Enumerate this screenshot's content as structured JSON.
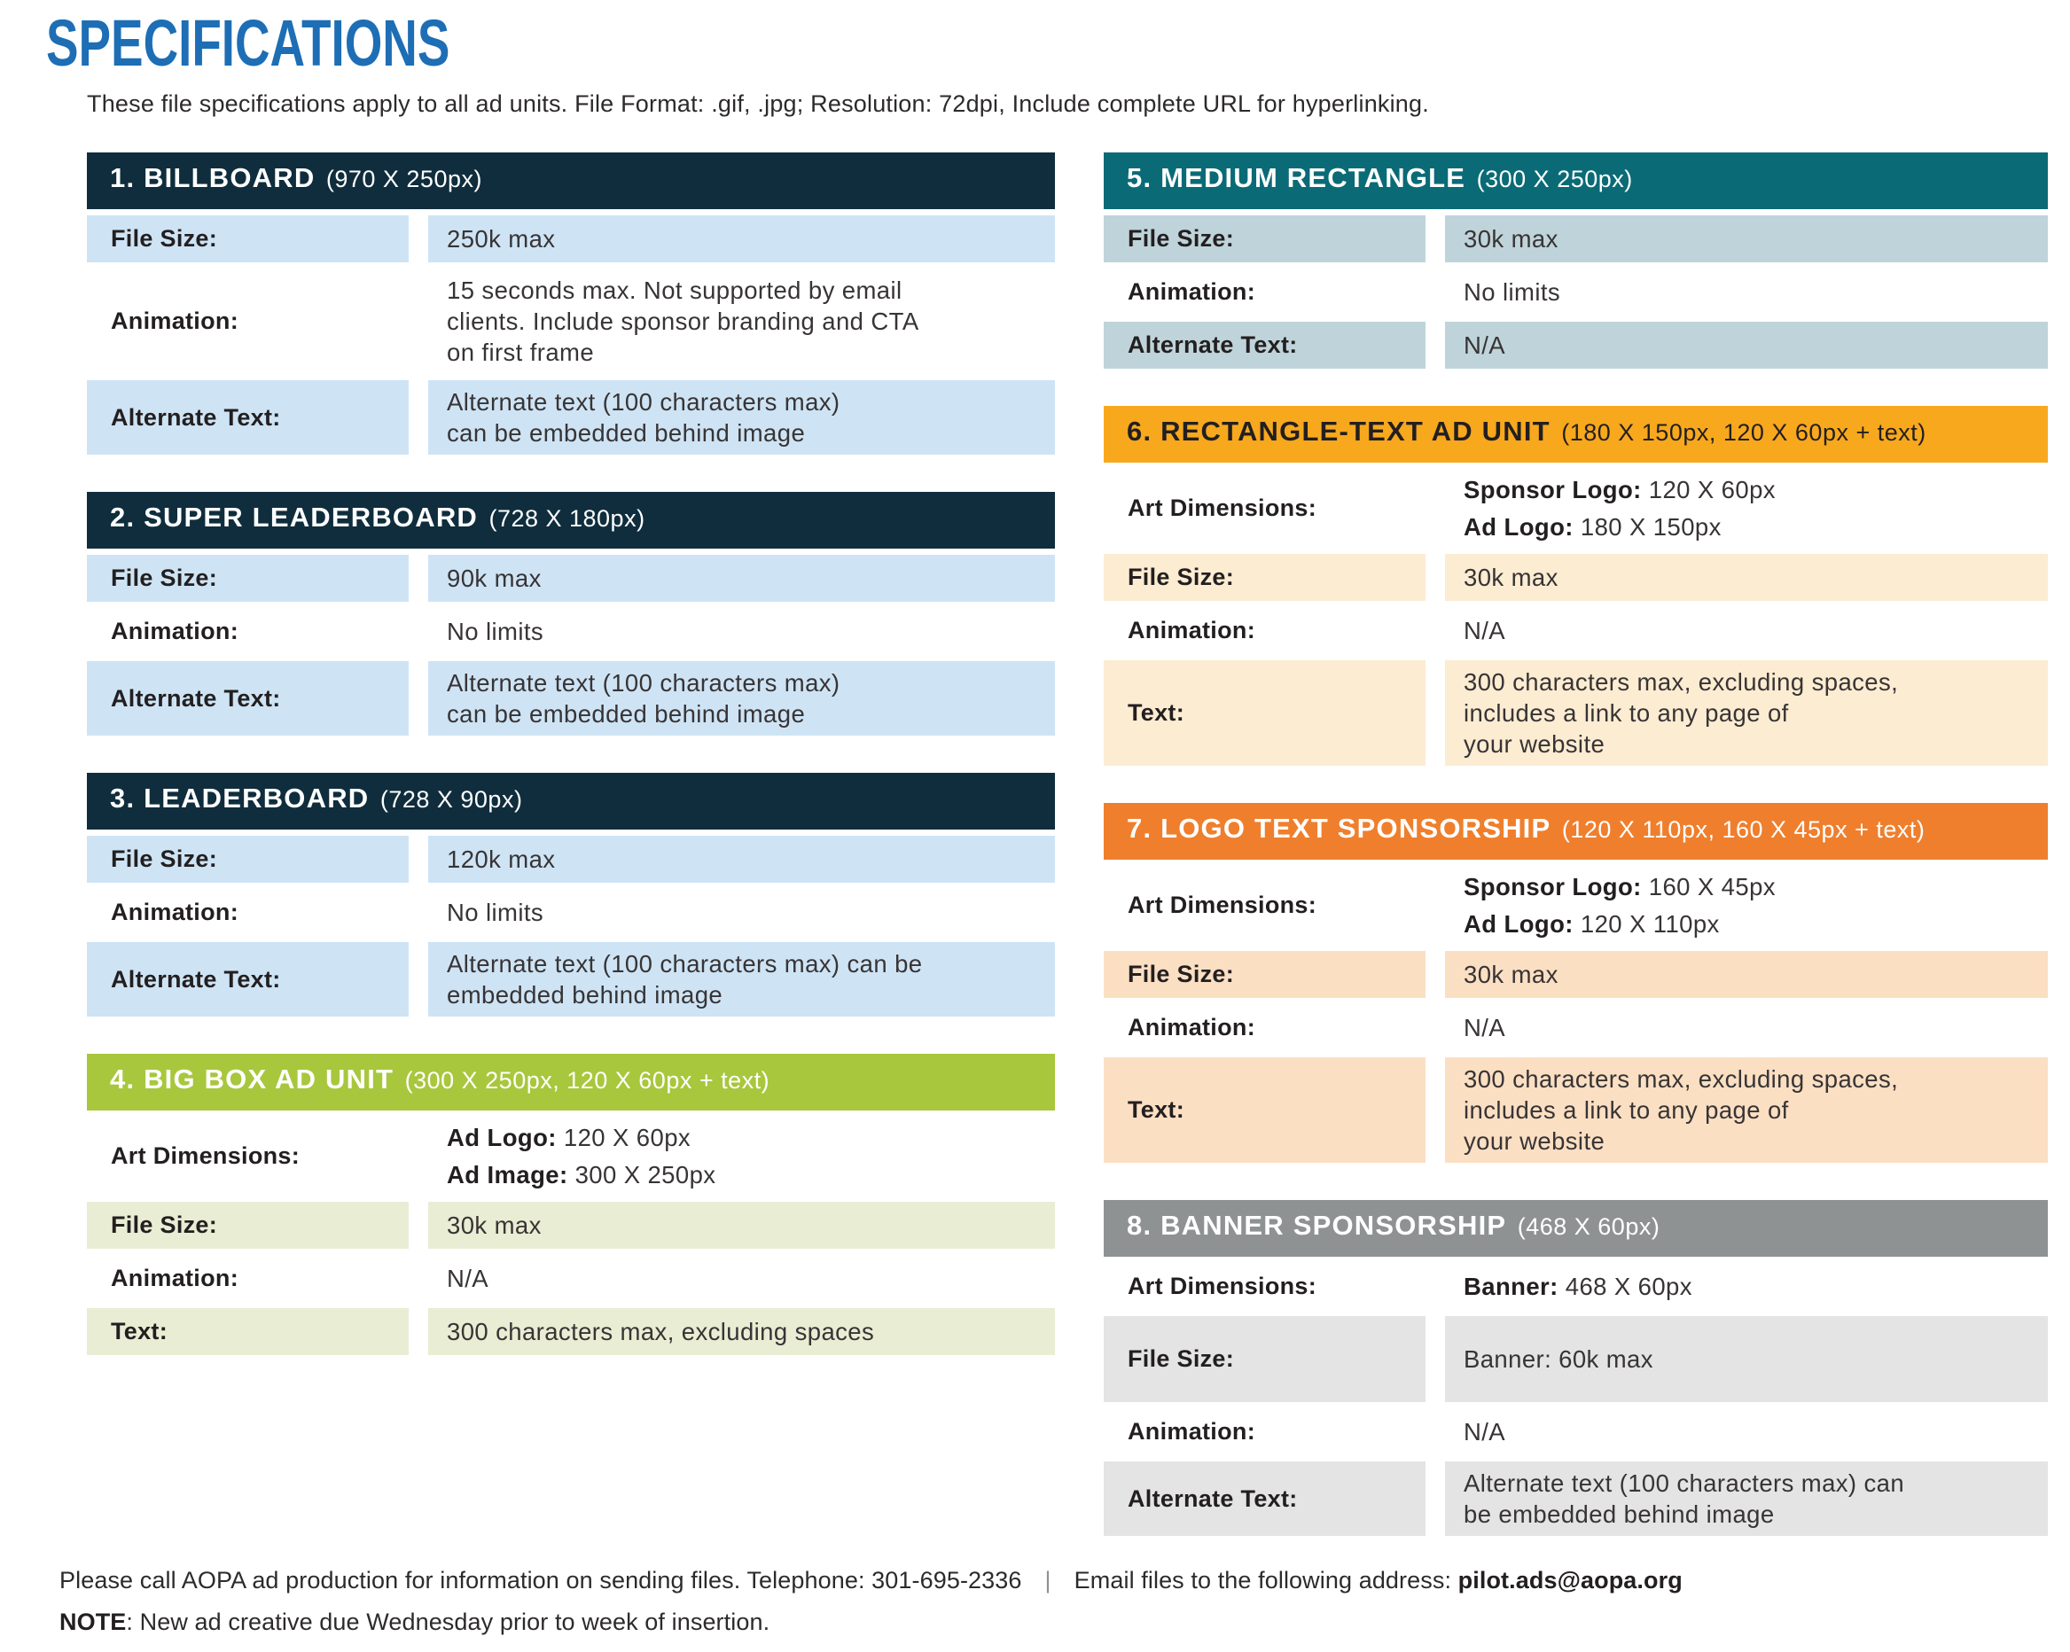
{
  "page": {
    "title": "SPECIFICATIONS",
    "subtitle": "These file specifications apply to all ad units. File Format: .gif, .jpg; Resolution: 72dpi, Include complete URL for hyperlinking.",
    "footer": {
      "contact": "Please call AOPA ad production for information on sending files. Telephone: 301-695-2336",
      "separator": "|",
      "email_label": "Email files to the following address: ",
      "email": "pilot.ads@aopa.org",
      "note_label": "NOTE",
      "note_text": ": New ad creative due Wednesday prior to week of insertion."
    }
  },
  "colors": {
    "title_blue": "#1d6eb5",
    "text_dark": "#231f20",
    "navy_header": "#0f2d3d",
    "light_blue_row": "#cee4f5",
    "green_header": "#a8c73d",
    "pale_green_row": "#e9edd3",
    "teal_header": "#0a6b76",
    "blue_gray_row": "#bfd4da",
    "yellow_header": "#f8a81d",
    "cream_row": "#fcecd2",
    "orange_header": "#ef7f2d",
    "peach_row": "#fbdfc3",
    "gray_header": "#8f9293",
    "light_gray_row": "#e4e4e4"
  },
  "tables": [
    {
      "title": "1. BILLBOARD",
      "dims": "(970 X 250px)",
      "theme": {
        "header_bg": "#0f2d3d",
        "header_text": "#ffffff",
        "row_bg": "#cee4f5"
      },
      "rows": [
        {
          "label": "File Size:",
          "lines": [
            {
              "t": "250k max"
            }
          ]
        },
        {
          "label": "Animation:",
          "lines": [
            {
              "t": "15 seconds max. Not supported by email"
            },
            {
              "t": "clients. Include sponsor branding and CTA"
            },
            {
              "t": "on first frame"
            }
          ]
        },
        {
          "label": "Alternate Text:",
          "lines": [
            {
              "t": "Alternate text (100 characters max)"
            },
            {
              "t": "can be embedded behind image"
            }
          ]
        }
      ]
    },
    {
      "title": "2. SUPER LEADERBOARD",
      "dims": "(728 X 180px)",
      "theme": {
        "header_bg": "#0f2d3d",
        "header_text": "#ffffff",
        "row_bg": "#cee4f5"
      },
      "rows": [
        {
          "label": "File Size:",
          "lines": [
            {
              "t": "90k max"
            }
          ]
        },
        {
          "label": "Animation:",
          "lines": [
            {
              "t": "No limits"
            }
          ]
        },
        {
          "label": "Alternate Text:",
          "lines": [
            {
              "t": "Alternate text (100 characters max)"
            },
            {
              "t": "can be embedded behind image"
            }
          ]
        }
      ]
    },
    {
      "title": "3. LEADERBOARD",
      "dims": "(728 X 90px)",
      "theme": {
        "header_bg": "#0f2d3d",
        "header_text": "#ffffff",
        "row_bg": "#cee4f5"
      },
      "rows": [
        {
          "label": "File Size:",
          "lines": [
            {
              "t": "120k max"
            }
          ]
        },
        {
          "label": "Animation:",
          "lines": [
            {
              "t": "No limits"
            }
          ]
        },
        {
          "label": "Alternate Text:",
          "lines": [
            {
              "t": "Alternate text (100 characters max) can be"
            },
            {
              "t": "embedded behind image"
            }
          ]
        }
      ]
    },
    {
      "title": "4. BIG BOX AD UNIT",
      "dims": "(300 X 250px, 120 X 60px + text)",
      "theme": {
        "header_bg": "#a8c73d",
        "header_text": "#ffffff",
        "row_bg": "#e9edd3"
      },
      "rows": [
        {
          "label": "Art Dimensions:",
          "lines": [
            {
              "b": "Ad Logo:",
              "t": " 120 X 60px"
            },
            {
              "b": "Ad Image:",
              "t": " 300 X 250px"
            }
          ]
        },
        {
          "label": "File Size:",
          "lines": [
            {
              "t": "30k max"
            }
          ]
        },
        {
          "label": "Animation:",
          "lines": [
            {
              "t": "N/A"
            }
          ]
        },
        {
          "label": "Text:",
          "lines": [
            {
              "t": "300 characters max, excluding spaces"
            }
          ]
        }
      ]
    },
    {
      "title": "5. MEDIUM RECTANGLE",
      "dims": "(300 X 250px)",
      "theme": {
        "header_bg": "#0a6b76",
        "header_text": "#ffffff",
        "row_bg": "#bfd4da"
      },
      "rows": [
        {
          "label": "File Size:",
          "lines": [
            {
              "t": "30k max"
            }
          ]
        },
        {
          "label": "Animation:",
          "lines": [
            {
              "t": "No limits"
            }
          ]
        },
        {
          "label": "Alternate Text:",
          "lines": [
            {
              "t": "N/A"
            }
          ]
        }
      ]
    },
    {
      "title": "6. RECTANGLE-TEXT AD UNIT",
      "dims": "(180 X 150px, 120 X 60px + text)",
      "theme": {
        "header_bg": "#f8a81d",
        "header_text": "#231f20",
        "row_bg": "#fcecd2"
      },
      "rows": [
        {
          "label": "Art Dimensions:",
          "lines": [
            {
              "b": "Sponsor Logo:",
              "t": " 120 X 60px"
            },
            {
              "b": "Ad Logo:",
              "t": " 180 X 150px"
            }
          ]
        },
        {
          "label": "File Size:",
          "lines": [
            {
              "t": "30k max"
            }
          ]
        },
        {
          "label": "Animation:",
          "lines": [
            {
              "t": "N/A"
            }
          ]
        },
        {
          "label": "Text:",
          "lines": [
            {
              "t": "300 characters max, excluding spaces,"
            },
            {
              "t": "includes a link to any page of"
            },
            {
              "t": "your website"
            }
          ]
        }
      ]
    },
    {
      "title": "7. LOGO TEXT SPONSORSHIP",
      "dims": "(120 X 110px, 160 X 45px + text)",
      "theme": {
        "header_bg": "#ef7f2d",
        "header_text": "#ffffff",
        "row_bg": "#fbdfc3"
      },
      "rows": [
        {
          "label": "Art Dimensions:",
          "lines": [
            {
              "b": "Sponsor Logo:",
              "t": " 160 X 45px"
            },
            {
              "b": "Ad Logo:",
              "t": " 120 X 110px"
            }
          ]
        },
        {
          "label": "File Size:",
          "lines": [
            {
              "t": "30k max"
            }
          ]
        },
        {
          "label": "Animation:",
          "lines": [
            {
              "t": "N/A"
            }
          ]
        },
        {
          "label": "Text:",
          "lines": [
            {
              "t": "300 characters max, excluding spaces,"
            },
            {
              "t": "includes a link to any page of"
            },
            {
              "t": "your website"
            }
          ]
        }
      ]
    },
    {
      "title": "8. BANNER SPONSORSHIP",
      "dims": "(468 X 60px)",
      "theme": {
        "header_bg": "#8f9293",
        "header_text": "#ffffff",
        "row_bg": "#e4e4e4"
      },
      "rows": [
        {
          "label": "Art Dimensions:",
          "lines": [
            {
              "b": "Banner:",
              "t": " 468 X 60px"
            }
          ]
        },
        {
          "label": "File Size:",
          "lines": [
            {
              "t": "Banner: 60k max"
            }
          ]
        },
        {
          "label": "Animation:",
          "lines": [
            {
              "t": "N/A"
            }
          ]
        },
        {
          "label": "Alternate Text:",
          "lines": [
            {
              "t": "Alternate text (100 characters max) can"
            },
            {
              "t": "be embedded behind image"
            }
          ]
        }
      ]
    }
  ]
}
